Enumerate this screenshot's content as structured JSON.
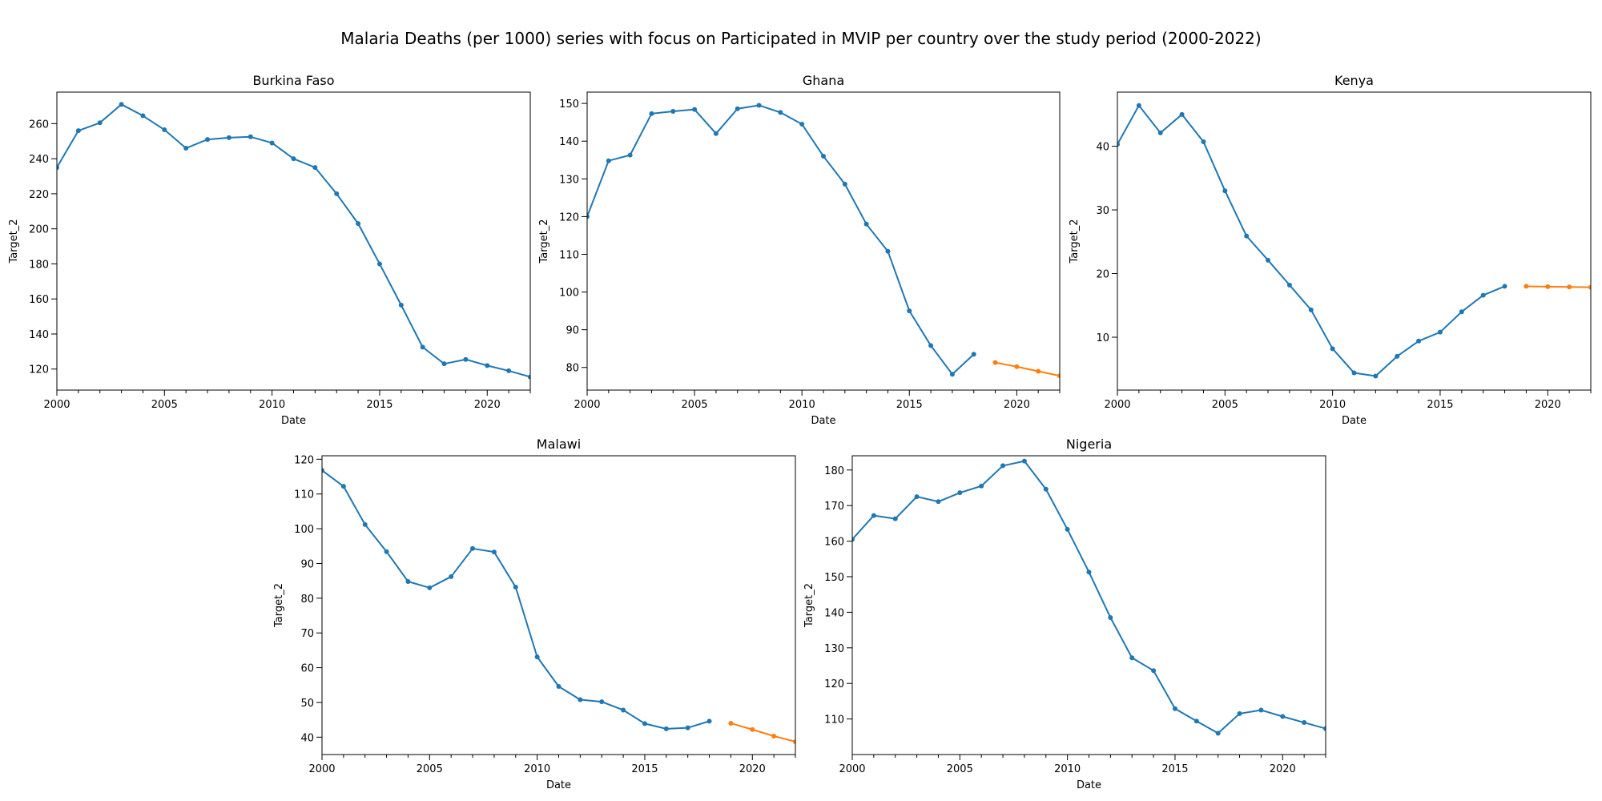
{
  "title": "Malaria Deaths (per 1000) series with focus on Participated in MVIP per country over the study period (2000-2022)",
  "colors": {
    "observed": "#1f77b4",
    "forecast": "#ff7f0e",
    "axis": "#000000"
  },
  "chart_data": [
    {
      "type": "line",
      "title": "Burkina Faso",
      "xlabel": "Date",
      "ylabel": "Target_2",
      "xlim": [
        2000,
        2022
      ],
      "ylim": [
        108,
        278
      ],
      "xticks": [
        2000,
        2005,
        2010,
        2015,
        2020
      ],
      "yticks": [
        120,
        140,
        160,
        180,
        200,
        220,
        240,
        260
      ],
      "series": [
        {
          "role": "observed",
          "x": [
            2000,
            2001,
            2002,
            2003,
            2004,
            2005,
            2006,
            2007,
            2008,
            2009,
            2010,
            2011,
            2012,
            2013,
            2014,
            2015,
            2016,
            2017,
            2018,
            2019,
            2020,
            2021,
            2022
          ],
          "values": [
            235,
            256,
            260.5,
            271,
            264.5,
            256.5,
            246,
            251,
            252,
            252.5,
            249,
            240,
            235,
            220,
            203,
            180,
            156.5,
            132.5,
            123,
            125.5,
            122,
            119,
            115.5
          ]
        }
      ]
    },
    {
      "type": "line",
      "title": "Ghana",
      "xlabel": "Date",
      "ylabel": "Target_2",
      "xlim": [
        2000,
        2022
      ],
      "ylim": [
        74,
        153
      ],
      "xticks": [
        2000,
        2005,
        2010,
        2015,
        2020
      ],
      "yticks": [
        80,
        90,
        100,
        110,
        120,
        130,
        140,
        150
      ],
      "series": [
        {
          "role": "observed",
          "x": [
            2000,
            2001,
            2002,
            2003,
            2004,
            2005,
            2006,
            2007,
            2008,
            2009,
            2010,
            2011,
            2012,
            2013,
            2014,
            2015,
            2016,
            2017,
            2018
          ],
          "values": [
            120,
            134.8,
            136.3,
            147.3,
            147.9,
            148.4,
            142,
            148.6,
            149.5,
            147.6,
            144.5,
            136,
            128.6,
            118,
            110.8,
            95,
            85.8,
            78.2,
            83.5
          ]
        },
        {
          "role": "forecast",
          "x": [
            2019,
            2020,
            2021,
            2022
          ],
          "values": [
            81.3,
            80.2,
            79,
            77.8
          ]
        }
      ]
    },
    {
      "type": "line",
      "title": "Kenya",
      "xlabel": "Date",
      "ylabel": "Target_2",
      "xlim": [
        2000,
        2022
      ],
      "ylim": [
        1.7,
        48.5
      ],
      "xticks": [
        2000,
        2005,
        2010,
        2015,
        2020
      ],
      "yticks": [
        10,
        20,
        30,
        40
      ],
      "series": [
        {
          "role": "observed",
          "x": [
            2000,
            2001,
            2002,
            2003,
            2004,
            2005,
            2006,
            2007,
            2008,
            2009,
            2010,
            2011,
            2012,
            2013,
            2014,
            2015,
            2016,
            2017,
            2018
          ],
          "values": [
            40.3,
            46.4,
            42.1,
            45,
            40.7,
            33,
            25.9,
            22.1,
            18.2,
            14.3,
            8.2,
            4.4,
            3.9,
            7,
            9.4,
            10.8,
            14,
            16.6,
            18
          ]
        },
        {
          "role": "forecast",
          "x": [
            2019,
            2020,
            2021,
            2022
          ],
          "values": [
            18,
            17.95,
            17.9,
            17.85
          ]
        }
      ]
    },
    {
      "type": "line",
      "title": "Malawi",
      "xlabel": "Date",
      "ylabel": "Target_2",
      "xlim": [
        2000,
        2022
      ],
      "ylim": [
        35,
        121
      ],
      "xticks": [
        2000,
        2005,
        2010,
        2015,
        2020
      ],
      "yticks": [
        40,
        50,
        60,
        70,
        80,
        90,
        100,
        110,
        120
      ],
      "series": [
        {
          "role": "observed",
          "x": [
            2000,
            2001,
            2002,
            2003,
            2004,
            2005,
            2006,
            2007,
            2008,
            2009,
            2010,
            2011,
            2012,
            2013,
            2014,
            2015,
            2016,
            2017,
            2018
          ],
          "values": [
            116.8,
            112.2,
            101.2,
            93.4,
            84.8,
            83,
            86.2,
            94.3,
            93.3,
            83.2,
            63.1,
            54.6,
            50.8,
            50.2,
            47.8,
            43.9,
            42.4,
            42.7,
            44.6
          ]
        },
        {
          "role": "forecast",
          "x": [
            2019,
            2020,
            2021,
            2022
          ],
          "values": [
            44,
            42.2,
            40.3,
            38.7
          ]
        }
      ]
    },
    {
      "type": "line",
      "title": "Nigeria",
      "xlabel": "Date",
      "ylabel": "Target_2",
      "xlim": [
        2000,
        2022
      ],
      "ylim": [
        100,
        184
      ],
      "xticks": [
        2000,
        2005,
        2010,
        2015,
        2020
      ],
      "yticks": [
        110,
        120,
        130,
        140,
        150,
        160,
        170,
        180
      ],
      "series": [
        {
          "role": "observed",
          "x": [
            2000,
            2001,
            2002,
            2003,
            2004,
            2005,
            2006,
            2007,
            2008,
            2009,
            2010,
            2011,
            2012,
            2013,
            2014,
            2015,
            2016,
            2017,
            2018,
            2019,
            2020,
            2021,
            2022
          ],
          "values": [
            160.5,
            167.2,
            166.3,
            172.5,
            171.1,
            173.6,
            175.5,
            181.2,
            182.5,
            174.6,
            163.3,
            151.3,
            138.5,
            127.2,
            123.6,
            112.9,
            109.4,
            106,
            111.5,
            112.5,
            110.7,
            109,
            107.3
          ]
        }
      ]
    }
  ]
}
